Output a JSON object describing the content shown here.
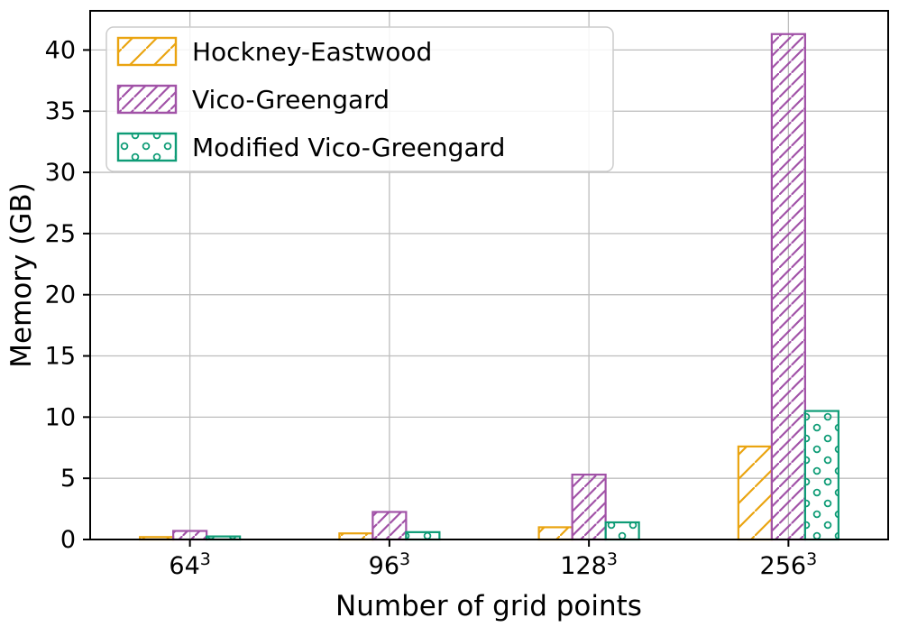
{
  "chart_data": {
    "type": "bar",
    "title": "",
    "xlabel": "Number of grid points",
    "ylabel": "Memory (GB)",
    "categories_display": [
      "64³",
      "96³",
      "128³",
      "256³"
    ],
    "category_bases": [
      "64",
      "96",
      "128",
      "256"
    ],
    "category_exponent": "3",
    "series": [
      {
        "name": "Hockney-Eastwood",
        "color": "#EAA410",
        "hatch": "/",
        "values": [
          0.2,
          0.5,
          1.0,
          7.6
        ]
      },
      {
        "name": "Vico-Greengard",
        "color": "#A152A7",
        "hatch": "//",
        "values": [
          0.7,
          2.25,
          5.3,
          41.3
        ]
      },
      {
        "name": "Modified Vico-Greengard",
        "color": "#0E9C76",
        "hatch": "o",
        "values": [
          0.25,
          0.6,
          1.4,
          10.5
        ]
      }
    ],
    "yticks": [
      0,
      5,
      10,
      15,
      20,
      25,
      30,
      35,
      40
    ],
    "ylim": [
      0,
      43.2
    ],
    "grid": true,
    "grid_color": "#bdbdbd",
    "axis_color": "#000000",
    "legend_position": "upper left",
    "legend_border_color": "#cccccc",
    "bar_fill": "transparent"
  }
}
